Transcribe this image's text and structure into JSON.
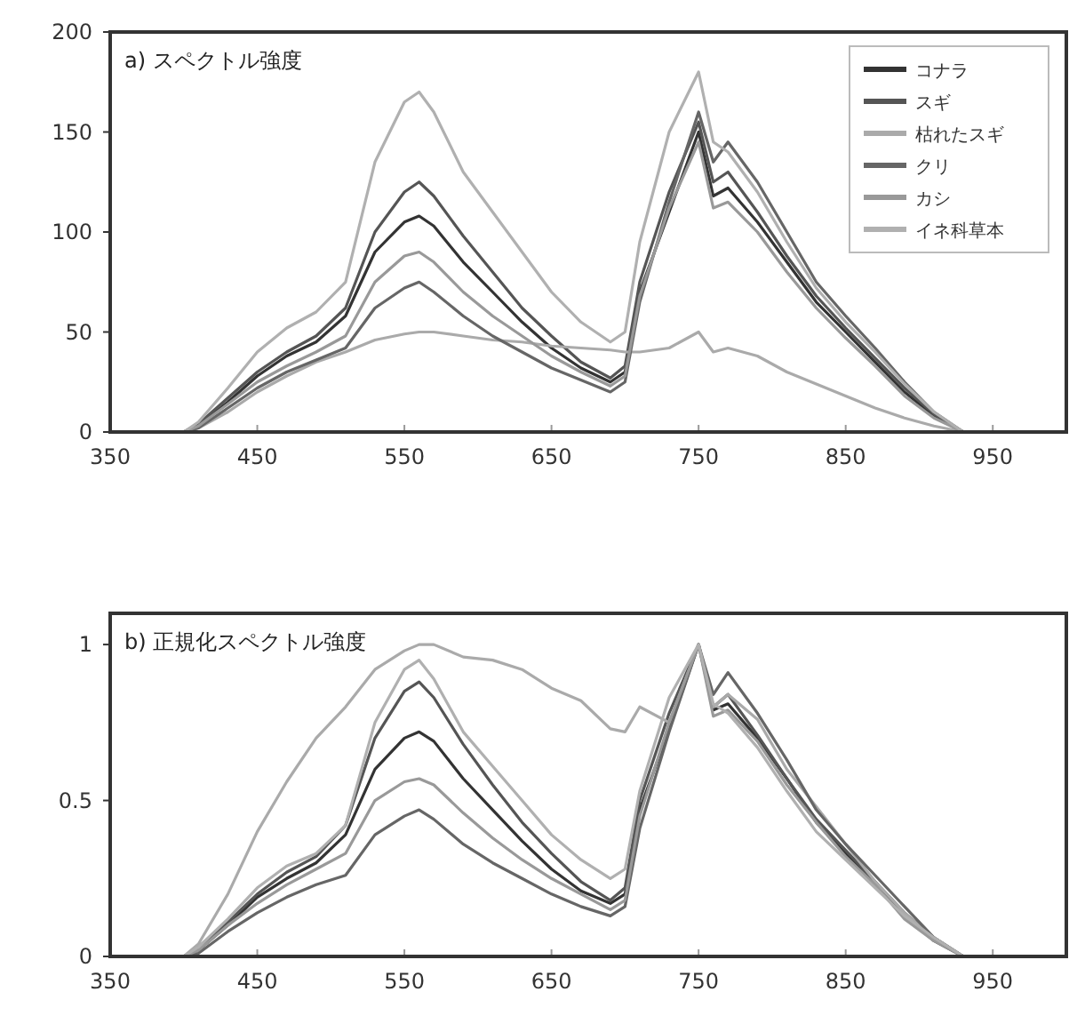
{
  "chart_data": [
    {
      "type": "line",
      "title": "a) スペクトル強度",
      "x": [
        350,
        400,
        410,
        430,
        450,
        470,
        490,
        510,
        530,
        550,
        560,
        570,
        590,
        610,
        630,
        650,
        670,
        690,
        700,
        710,
        730,
        750,
        760,
        770,
        790,
        810,
        830,
        850,
        870,
        890,
        910,
        930,
        950,
        1000
      ],
      "xlim": [
        350,
        1000
      ],
      "xticks": [
        350,
        450,
        550,
        650,
        750,
        850,
        950
      ],
      "ylim": [
        0,
        200
      ],
      "yticks": [
        0,
        50,
        100,
        150,
        200
      ],
      "legend": "top right",
      "grid": false,
      "marker": "none",
      "line_style": "solid",
      "series": [
        {
          "name": "コナラ",
          "color": "#333333",
          "values": [
            0,
            0,
            3,
            15,
            28,
            38,
            45,
            58,
            90,
            105,
            108,
            103,
            85,
            70,
            55,
            42,
            32,
            25,
            30,
            70,
            110,
            150,
            118,
            122,
            105,
            85,
            65,
            50,
            35,
            20,
            8,
            0,
            0,
            0
          ]
        },
        {
          "name": "スギ",
          "color": "#555555",
          "values": [
            0,
            0,
            4,
            17,
            30,
            40,
            48,
            62,
            100,
            120,
            125,
            118,
            98,
            80,
            62,
            48,
            35,
            27,
            33,
            75,
            120,
            155,
            125,
            130,
            110,
            88,
            68,
            52,
            37,
            22,
            9,
            0,
            0,
            0
          ]
        },
        {
          "name": "枯れたスギ",
          "color": "#aaaaaa",
          "values": [
            0,
            0,
            2,
            10,
            20,
            28,
            35,
            40,
            46,
            49,
            50,
            50,
            48,
            46,
            45,
            43,
            42,
            41,
            40,
            40,
            42,
            50,
            40,
            42,
            38,
            30,
            24,
            18,
            12,
            7,
            3,
            0,
            0,
            0
          ]
        },
        {
          "name": "クリ",
          "color": "#666666",
          "values": [
            0,
            0,
            2,
            12,
            22,
            30,
            36,
            42,
            62,
            72,
            75,
            70,
            58,
            48,
            40,
            32,
            26,
            20,
            25,
            65,
            115,
            160,
            135,
            145,
            125,
            100,
            75,
            58,
            42,
            25,
            10,
            0,
            0,
            0
          ]
        },
        {
          "name": "カシ",
          "color": "#999999",
          "values": [
            0,
            0,
            3,
            14,
            25,
            33,
            40,
            48,
            75,
            88,
            90,
            85,
            70,
            58,
            48,
            38,
            30,
            23,
            28,
            68,
            112,
            145,
            112,
            115,
            100,
            80,
            62,
            47,
            33,
            18,
            7,
            0,
            0,
            0
          ]
        },
        {
          "name": "イネ科草本",
          "color": "#b0b0b0",
          "values": [
            0,
            0,
            5,
            22,
            40,
            52,
            60,
            75,
            135,
            165,
            170,
            160,
            130,
            110,
            90,
            70,
            55,
            45,
            50,
            95,
            150,
            180,
            145,
            140,
            120,
            95,
            72,
            55,
            40,
            24,
            10,
            0,
            0,
            0
          ]
        }
      ]
    },
    {
      "type": "line",
      "title": "b) 正規化スペクトル強度",
      "x": [
        350,
        400,
        410,
        430,
        450,
        470,
        490,
        510,
        530,
        550,
        560,
        570,
        590,
        610,
        630,
        650,
        670,
        690,
        700,
        710,
        730,
        750,
        760,
        770,
        790,
        810,
        830,
        850,
        870,
        890,
        910,
        930,
        950,
        1000
      ],
      "xlim": [
        350,
        1000
      ],
      "xticks": [
        350,
        450,
        550,
        650,
        750,
        850,
        950
      ],
      "ylim": [
        0,
        1.1
      ],
      "yticks": [
        0,
        0.5,
        1
      ],
      "grid": false,
      "marker": "none",
      "line_style": "solid",
      "series": [
        {
          "color": "#333333",
          "values": [
            0,
            0,
            0.02,
            0.1,
            0.19,
            0.25,
            0.3,
            0.39,
            0.6,
            0.7,
            0.72,
            0.69,
            0.57,
            0.47,
            0.37,
            0.28,
            0.21,
            0.17,
            0.2,
            0.47,
            0.73,
            1,
            0.79,
            0.81,
            0.7,
            0.57,
            0.43,
            0.33,
            0.23,
            0.13,
            0.05,
            0,
            0,
            0
          ]
        },
        {
          "color": "#555555",
          "values": [
            0,
            0,
            0.03,
            0.11,
            0.2,
            0.27,
            0.32,
            0.42,
            0.7,
            0.85,
            0.88,
            0.83,
            0.68,
            0.55,
            0.43,
            0.33,
            0.24,
            0.18,
            0.22,
            0.5,
            0.78,
            1,
            0.8,
            0.84,
            0.71,
            0.57,
            0.44,
            0.34,
            0.24,
            0.14,
            0.06,
            0,
            0,
            0
          ]
        },
        {
          "color": "#aaaaaa",
          "values": [
            0,
            0,
            0.04,
            0.2,
            0.4,
            0.56,
            0.7,
            0.8,
            0.92,
            0.98,
            1,
            1,
            0.96,
            0.95,
            0.92,
            0.86,
            0.82,
            0.73,
            0.72,
            0.8,
            0.75,
            1,
            0.8,
            0.84,
            0.76,
            0.6,
            0.48,
            0.36,
            0.24,
            0.14,
            0.06,
            0,
            0,
            0
          ]
        },
        {
          "color": "#666666",
          "values": [
            0,
            0,
            0.01,
            0.08,
            0.14,
            0.19,
            0.23,
            0.26,
            0.39,
            0.45,
            0.47,
            0.44,
            0.36,
            0.3,
            0.25,
            0.2,
            0.16,
            0.13,
            0.16,
            0.41,
            0.72,
            1,
            0.84,
            0.91,
            0.78,
            0.63,
            0.47,
            0.36,
            0.26,
            0.16,
            0.06,
            0,
            0,
            0
          ]
        },
        {
          "color": "#999999",
          "values": [
            0,
            0,
            0.02,
            0.1,
            0.17,
            0.23,
            0.28,
            0.33,
            0.5,
            0.56,
            0.57,
            0.55,
            0.46,
            0.38,
            0.31,
            0.25,
            0.2,
            0.15,
            0.18,
            0.45,
            0.75,
            1,
            0.77,
            0.79,
            0.69,
            0.55,
            0.43,
            0.32,
            0.23,
            0.12,
            0.05,
            0,
            0,
            0
          ]
        },
        {
          "color": "#b0b0b0",
          "values": [
            0,
            0,
            0.03,
            0.12,
            0.22,
            0.29,
            0.33,
            0.42,
            0.75,
            0.92,
            0.95,
            0.89,
            0.72,
            0.61,
            0.5,
            0.39,
            0.31,
            0.25,
            0.28,
            0.53,
            0.83,
            1,
            0.81,
            0.78,
            0.67,
            0.53,
            0.4,
            0.31,
            0.22,
            0.13,
            0.06,
            0,
            0,
            0
          ]
        }
      ]
    }
  ]
}
